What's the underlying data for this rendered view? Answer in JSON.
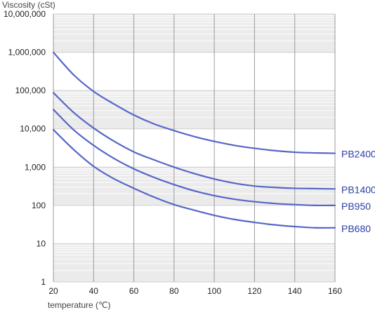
{
  "chart_data": {
    "type": "line",
    "ylabel": "Viscosity (cSt)",
    "xlabel": "temperature (℃)",
    "y_scale": "log",
    "xlim": [
      20,
      160
    ],
    "ylim": [
      1,
      10000000
    ],
    "x_ticks": [
      20,
      40,
      60,
      80,
      100,
      120,
      140,
      160
    ],
    "x_tick_labels": [
      "20",
      "40",
      "60",
      "80",
      "100",
      "120",
      "140",
      "160"
    ],
    "y_ticks": [
      1,
      10,
      100,
      1000,
      10000,
      100000,
      1000000,
      10000000
    ],
    "y_tick_labels": [
      "1",
      "10",
      "100",
      "1,000",
      "10,000",
      "100,000",
      "1,000,000",
      "10,000,000"
    ],
    "grid": true,
    "colors": {
      "line": "#5566c8",
      "label": "#2d3fa8",
      "band": "#ebebeb",
      "grid_major": "#9a9a9a",
      "grid_minor": "#ffffff"
    },
    "series": [
      {
        "name": "PB2400",
        "x": [
          20,
          30,
          40,
          50,
          60,
          70,
          80,
          90,
          100,
          110,
          120,
          130,
          140,
          150,
          160
        ],
        "y": [
          1000000,
          260000,
          95000,
          45000,
          23000,
          13500,
          9000,
          6300,
          4700,
          3700,
          3100,
          2700,
          2450,
          2350,
          2300
        ]
      },
      {
        "name": "PB1400",
        "x": [
          20,
          30,
          40,
          50,
          60,
          70,
          80,
          90,
          100,
          110,
          120,
          130,
          140,
          150,
          160
        ],
        "y": [
          88000,
          27000,
          10500,
          4800,
          2500,
          1550,
          1000,
          680,
          490,
          380,
          320,
          295,
          280,
          275,
          270
        ]
      },
      {
        "name": "PB950",
        "x": [
          20,
          30,
          40,
          50,
          60,
          70,
          80,
          90,
          100,
          110,
          120,
          130,
          140,
          150,
          160
        ],
        "y": [
          32000,
          9500,
          3700,
          1700,
          900,
          540,
          350,
          240,
          180,
          145,
          125,
          112,
          105,
          100,
          100
        ]
      },
      {
        "name": "PB680",
        "x": [
          20,
          30,
          40,
          50,
          60,
          70,
          80,
          90,
          100,
          110,
          120,
          130,
          140,
          150,
          160
        ],
        "y": [
          9500,
          2900,
          1050,
          500,
          280,
          165,
          105,
          75,
          55,
          43,
          36,
          31,
          28,
          26,
          26
        ]
      }
    ]
  }
}
